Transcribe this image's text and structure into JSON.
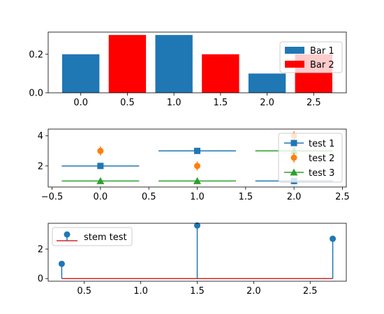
{
  "chart_data": [
    {
      "type": "bar",
      "title": "",
      "xlabel": "",
      "ylabel": "",
      "xlim": [
        -0.35,
        2.85
      ],
      "ylim": [
        0,
        0.315
      ],
      "xticks": [
        0.0,
        0.5,
        1.0,
        1.5,
        2.0,
        2.5
      ],
      "xtick_labels": [
        "0.0",
        "0.5",
        "1.0",
        "1.5",
        "2.0",
        "2.5"
      ],
      "yticks": [
        0.0,
        0.2
      ],
      "ytick_labels": [
        "0.0",
        "0.2"
      ],
      "bar_width": 0.4,
      "legend_position": "upper right",
      "series": [
        {
          "name": "Bar 1",
          "color": "#1f77b4",
          "x": [
            0.0,
            1.0,
            2.0
          ],
          "values": [
            0.2,
            0.3,
            0.1
          ]
        },
        {
          "name": "Bar 2",
          "color": "#ff0000",
          "x": [
            0.5,
            1.5,
            2.5
          ],
          "values": [
            0.3,
            0.2,
            0.2
          ]
        }
      ]
    },
    {
      "type": "scatter",
      "title": "",
      "xlabel": "",
      "ylabel": "",
      "xlim": [
        -0.54,
        2.54
      ],
      "ylim": [
        0.6,
        4.45
      ],
      "xticks": [
        -0.5,
        0.0,
        0.5,
        1.0,
        1.5,
        2.0,
        2.5
      ],
      "xtick_labels": [
        "−0.5",
        "0.0",
        "0.5",
        "1.0",
        "1.5",
        "2.0",
        "2.5"
      ],
      "yticks": [
        2,
        4
      ],
      "ytick_labels": [
        "2",
        "4"
      ],
      "legend_position": "upper right",
      "series": [
        {
          "name": "test 1",
          "color": "#1f77b4",
          "marker": "square",
          "error_type": "x",
          "x": [
            0,
            1,
            2
          ],
          "y": [
            2,
            3,
            1
          ],
          "xerr": [
            0.4,
            0.4,
            0.4
          ]
        },
        {
          "name": "test 2",
          "color": "#ff7f0e",
          "marker": "circle",
          "error_type": "y",
          "x": [
            0,
            1,
            2
          ],
          "y": [
            3,
            2,
            4
          ],
          "yerr": [
            0.3,
            0.3,
            0.3
          ]
        },
        {
          "name": "test 3",
          "color": "#2ca02c",
          "marker": "triangle",
          "error_type": "x",
          "x": [
            0,
            1,
            2
          ],
          "y": [
            1,
            1,
            3
          ],
          "xerr": [
            0.4,
            0.4,
            0.4
          ]
        }
      ]
    },
    {
      "type": "stem",
      "title": "",
      "xlabel": "",
      "ylabel": "",
      "xlim": [
        0.18,
        2.82
      ],
      "ylim": [
        -0.18,
        3.75
      ],
      "xticks": [
        0.5,
        1.0,
        1.5,
        2.0,
        2.5
      ],
      "xtick_labels": [
        "0.5",
        "1.0",
        "1.5",
        "2.0",
        "2.5"
      ],
      "yticks": [
        0,
        2
      ],
      "ytick_labels": [
        "0",
        "2"
      ],
      "legend_position": "upper left",
      "baseline": 0,
      "baseline_color": "#d62728",
      "series": [
        {
          "name": "stem test",
          "color": "#1f77b4",
          "x": [
            0.3,
            1.5,
            2.7
          ],
          "y": [
            1.0,
            3.6,
            2.7
          ]
        }
      ]
    }
  ]
}
